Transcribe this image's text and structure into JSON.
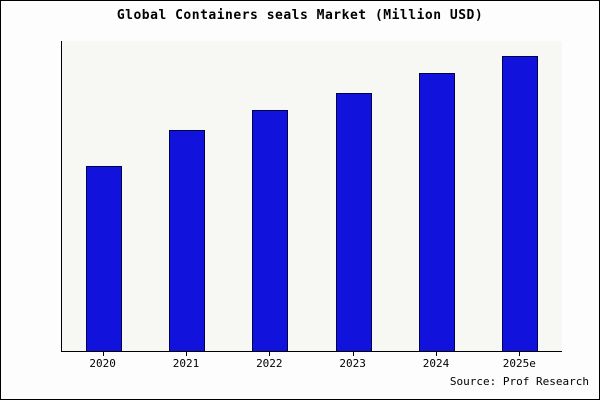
{
  "title": "Global Containers seals Market (Million USD)",
  "source": "Source: Prof Research",
  "colors": {
    "bar_fill": "#1212dd",
    "bar_edge": "#000050",
    "plot_background": "#f7f7f4",
    "axis": "#000000"
  },
  "chart_data": {
    "type": "bar",
    "categories": [
      "2020",
      "2021",
      "2022",
      "2023",
      "2024",
      "2025e"
    ],
    "values": [
      62.5,
      75,
      81.5,
      87.5,
      94,
      100
    ],
    "title": "Global Containers seals Market (Million USD)",
    "xlabel": "",
    "ylabel": "",
    "ylim": [
      0,
      105
    ],
    "grid": false,
    "legend": false,
    "annotation": "Source: Prof Research"
  }
}
